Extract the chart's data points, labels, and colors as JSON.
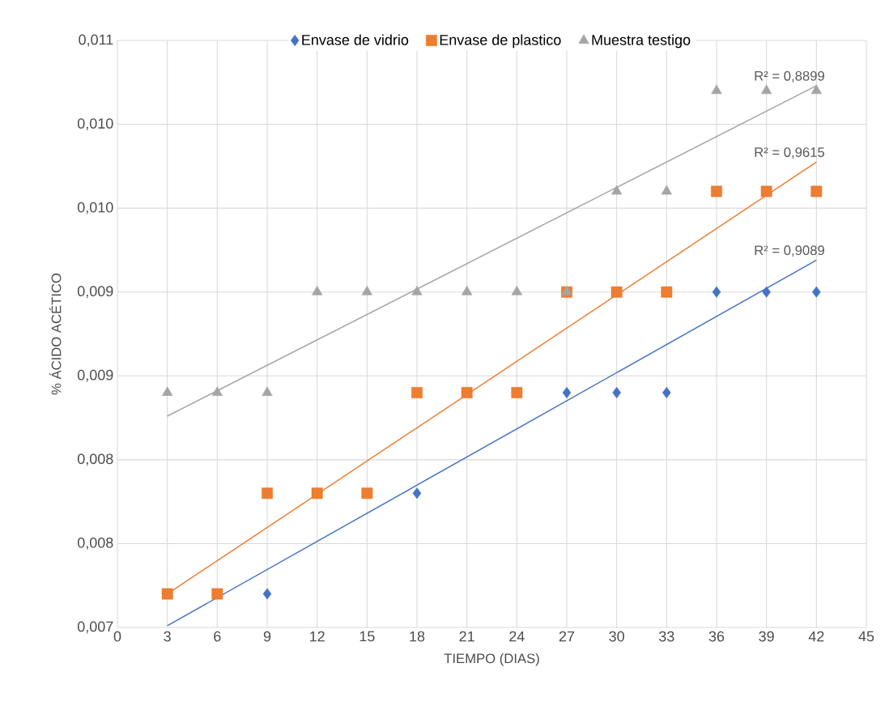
{
  "chart_data": {
    "type": "scatter",
    "xlabel": "TIEMPO (DIAS)",
    "ylabel": "% ÁCIDO ACÉTICO",
    "x": [
      3,
      6,
      9,
      12,
      15,
      18,
      21,
      24,
      27,
      30,
      33,
      36,
      39,
      42
    ],
    "series": [
      {
        "name": "Envase de vidrio",
        "color": "#4472c4",
        "marker": "diamond",
        "x": [
          9,
          18,
          27,
          30,
          33,
          36,
          39,
          42
        ],
        "values": [
          0.0072,
          0.0078,
          0.0084,
          0.0084,
          0.0084,
          0.009,
          0.009,
          0.009
        ]
      },
      {
        "name": "Envase de plastico",
        "color": "#ed7d31",
        "marker": "square",
        "values": [
          0.0072,
          0.0072,
          0.0078,
          0.0078,
          0.0078,
          0.0084,
          0.0084,
          0.0084,
          0.009,
          0.009,
          0.009,
          0.0096,
          0.0096,
          0.0096
        ]
      },
      {
        "name": "Muestra testigo",
        "color": "#a5a5a5",
        "marker": "triangle",
        "values": [
          0.0084,
          0.0084,
          0.0084,
          0.009,
          0.009,
          0.009,
          0.009,
          0.009,
          0.009,
          0.0096,
          0.0096,
          0.0102,
          0.0102,
          0.0102
        ]
      },
      {
        "type": "line",
        "color": "#4472c4",
        "marker": "none",
        "x": [
          3,
          42
        ],
        "values": [
          0.00701,
          0.00919
        ]
      },
      {
        "type": "line",
        "color": "#ed7d31",
        "marker": "none",
        "x": [
          3,
          42
        ],
        "values": [
          0.0072,
          0.009775
        ]
      },
      {
        "type": "line",
        "color": "#a5a5a5",
        "marker": "none",
        "x": [
          3,
          42
        ],
        "values": [
          0.00826,
          0.01023
        ]
      }
    ],
    "annotations": [
      "R² = 0,9089",
      "R² = 0,9615",
      "R² = 0,8899"
    ],
    "xlim": [
      0,
      45
    ],
    "xticks": [
      0,
      3,
      6,
      9,
      12,
      15,
      18,
      21,
      24,
      27,
      30,
      33,
      36,
      39,
      42,
      45
    ],
    "ylim": [
      0.007,
      0.0105
    ],
    "yticks": [
      {
        "value": 0.007,
        "label": "0,007"
      },
      {
        "value": 0.0075,
        "label": "0,008"
      },
      {
        "value": 0.008,
        "label": "0,008"
      },
      {
        "value": 0.0085,
        "label": "0,009"
      },
      {
        "value": 0.009,
        "label": "0,009"
      },
      {
        "value": 0.0095,
        "label": "0,010"
      },
      {
        "value": 0.01,
        "label": "0,010"
      },
      {
        "value": 0.0105,
        "label": "0,011"
      }
    ],
    "grid": true,
    "legend": "top"
  }
}
